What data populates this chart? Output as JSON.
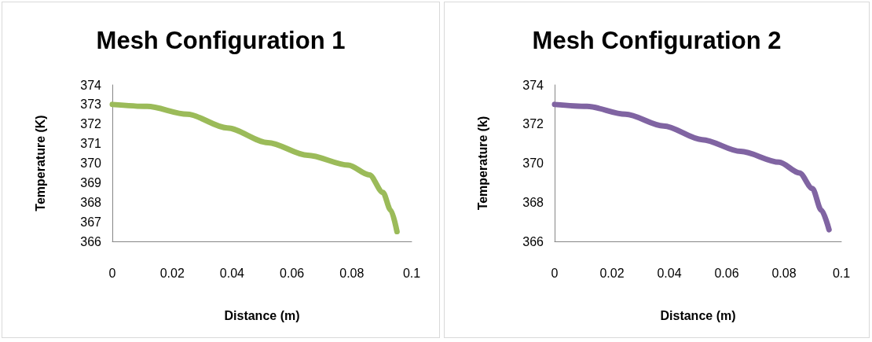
{
  "chart_data": [
    {
      "type": "line",
      "title": "Mesh Configuration 1",
      "xlabel": "Distance (m)",
      "ylabel": "Temperature (K)",
      "x": [
        0,
        0.0116,
        0.025,
        0.0384,
        0.052,
        0.0653,
        0.0788,
        0.0859,
        0.0904,
        0.093,
        0.0951
      ],
      "series": [
        {
          "color": "#9bbb59",
          "values": [
            373,
            372.9,
            372.5,
            371.8,
            371.05,
            370.4,
            369.9,
            369.4,
            368.5,
            367.6,
            366.5
          ]
        }
      ],
      "xlim": [
        0,
        0.1
      ],
      "xticks": [
        0,
        0.02,
        0.04,
        0.06,
        0.08,
        0.1
      ],
      "ylim": [
        366,
        374
      ],
      "yticks": [
        366,
        367,
        368,
        369,
        370,
        371,
        372,
        373,
        374
      ],
      "grid": false,
      "marker": "none",
      "line_style": "solid"
    },
    {
      "type": "line",
      "title": "Mesh Configuration 2",
      "xlabel": "Distance (m)",
      "ylabel": "Temperature (k)",
      "x": [
        0,
        0.0113,
        0.0247,
        0.038,
        0.0515,
        0.0649,
        0.0783,
        0.0854,
        0.0899,
        0.093,
        0.0957
      ],
      "series": [
        {
          "color": "#8064a2",
          "values": [
            373,
            372.9,
            372.5,
            371.9,
            371.2,
            370.6,
            370.05,
            369.5,
            368.7,
            367.6,
            366.6
          ]
        }
      ],
      "xlim": [
        0,
        0.1
      ],
      "xticks": [
        0,
        0.02,
        0.04,
        0.06,
        0.08,
        0.1
      ],
      "ylim": [
        366,
        374
      ],
      "yticks": [
        366,
        368,
        370,
        372,
        374
      ],
      "grid": false,
      "marker": "none",
      "line_style": "solid"
    }
  ]
}
